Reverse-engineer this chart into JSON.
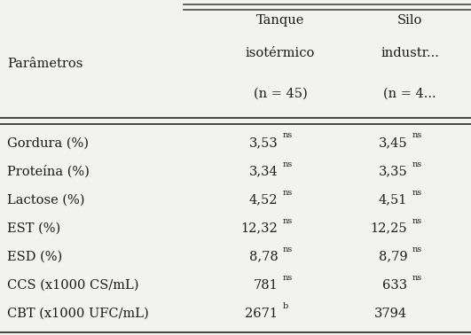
{
  "col_header": "Parâmetros",
  "col1_lines": [
    "Tanque",
    "isotérmico",
    "(n = 45)"
  ],
  "col2_lines": [
    "Silo",
    "industr...",
    "(n = 4..."
  ],
  "rows": [
    [
      "Gordura (%)",
      "3,53",
      "ns",
      "3,45",
      "ns"
    ],
    [
      "Proteína (%)",
      "3,34",
      "ns",
      "3,35",
      "ns"
    ],
    [
      "Lactose (%)",
      "4,52",
      "ns",
      "4,51",
      "ns"
    ],
    [
      "EST (%)",
      "12,32",
      "ns",
      "12,25",
      "ns"
    ],
    [
      "ESD (%)",
      "8,78",
      "ns",
      "8,79",
      "ns"
    ],
    [
      "CCS (x1000 CS/mL)",
      "781",
      "ns",
      "633",
      "ns"
    ],
    [
      "CBT (x1000 UFC/mL)",
      "2671",
      "b",
      "3794",
      ""
    ]
  ],
  "bg_color": "#f2f2ee",
  "text_color": "#1a1a1a",
  "line_color": "#444444",
  "font_size": 10.5,
  "header_font_size": 10.5,
  "sup_font_size": 7.0
}
